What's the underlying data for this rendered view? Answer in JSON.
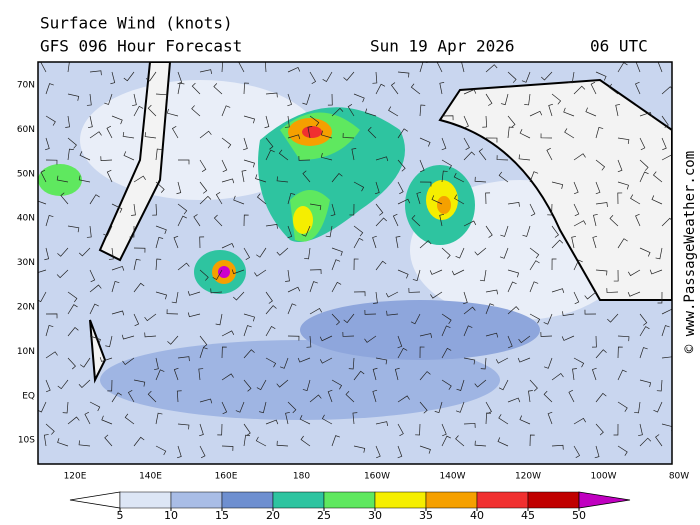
{
  "header": {
    "title": "Surface Wind (knots)",
    "subtitle": "GFS 096 Hour Forecast",
    "valid_date": "Sun 19 Apr 2026",
    "valid_time": "06 UTC"
  },
  "map": {
    "lat_labels": [
      "70N",
      "60N",
      "50N",
      "40N",
      "30N",
      "20N",
      "10N",
      "EQ",
      "10S"
    ],
    "lon_labels": [
      "120E",
      "140E",
      "160E",
      "180",
      "160W",
      "140W",
      "120W",
      "100W",
      "80W"
    ]
  },
  "legend": {
    "levels": [
      5,
      10,
      15,
      20,
      25,
      30,
      35,
      40,
      45,
      50
    ],
    "colors": [
      "#ffffff",
      "#dde6f5",
      "#a9bde6",
      "#6e8fd0",
      "#2ec4a0",
      "#5fe85f",
      "#f5ee00",
      "#f5a000",
      "#f03030",
      "#c00000",
      "#c000c0"
    ]
  },
  "credit": "© www.PassageWeather.com"
}
